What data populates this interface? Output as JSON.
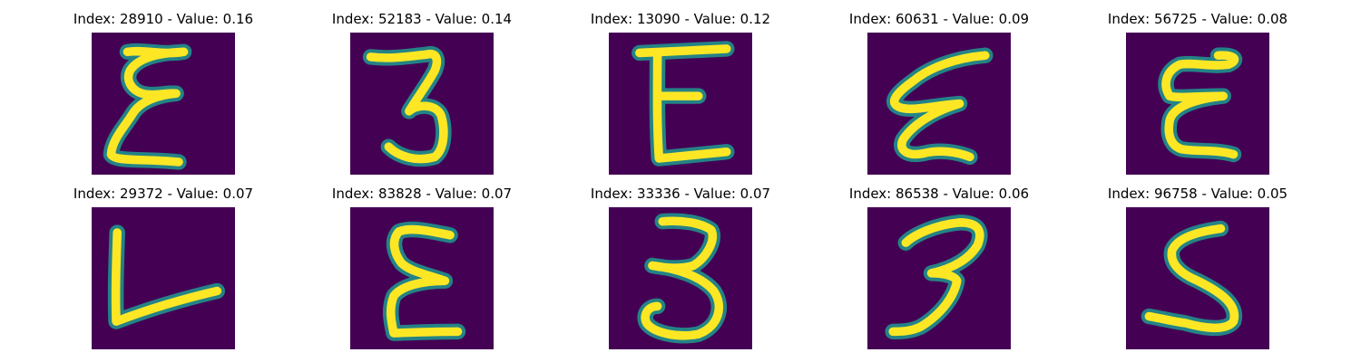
{
  "colors": {
    "background": "#440154",
    "stroke_edge": "#21918c",
    "stroke_core": "#fde725"
  },
  "panels": [
    {
      "title": "Index: 28910 - Value: 0.16",
      "index": 28910,
      "value": 0.16,
      "glyph": "E"
    },
    {
      "title": "Index: 52183 - Value: 0.14",
      "index": 52183,
      "value": 0.14,
      "glyph": "3"
    },
    {
      "title": "Index: 13090 - Value: 0.12",
      "index": 13090,
      "value": 0.12,
      "glyph": "E"
    },
    {
      "title": "Index: 60631 - Value: 0.09",
      "index": 60631,
      "value": 0.09,
      "glyph": "E"
    },
    {
      "title": "Index: 56725 - Value: 0.08",
      "index": 56725,
      "value": 0.08,
      "glyph": "E"
    },
    {
      "title": "Index: 29372 - Value: 0.07",
      "index": 29372,
      "value": 0.07,
      "glyph": "L"
    },
    {
      "title": "Index: 83828 - Value: 0.07",
      "index": 83828,
      "value": 0.07,
      "glyph": "E"
    },
    {
      "title": "Index: 33336 - Value: 0.07",
      "index": 33336,
      "value": 0.07,
      "glyph": "3"
    },
    {
      "title": "Index: 86538 - Value: 0.06",
      "index": 86538,
      "value": 0.06,
      "glyph": "3"
    },
    {
      "title": "Index: 96758 - Value: 0.05",
      "index": 96758,
      "value": 0.05,
      "glyph": "S"
    }
  ]
}
